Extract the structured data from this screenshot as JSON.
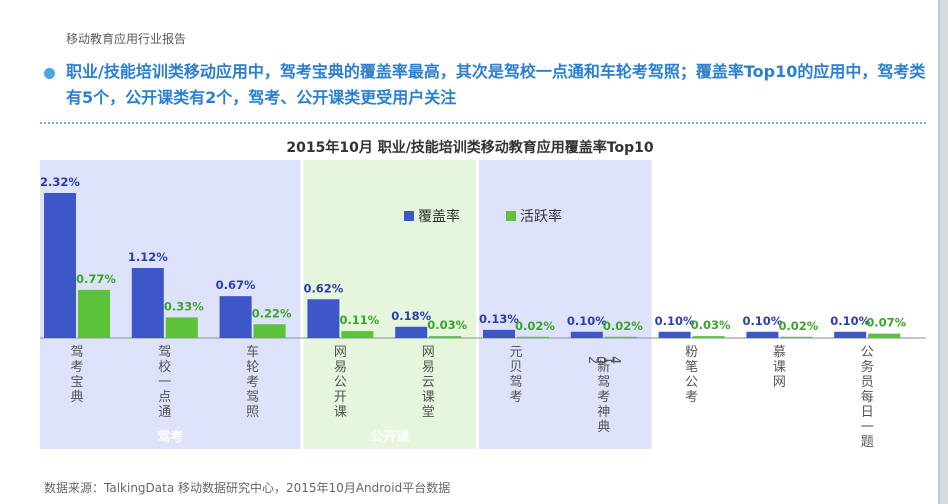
{
  "report": {
    "label": "移动教育应用行业报告",
    "headline": "职业/技能培训类移动应用中，驾考宝典的覆盖率最高，其次是驾校一点通和车轮考驾照；覆盖率Top10的应用中，驾考类有5个，公开课类有2个，驾考、公开课类更受用户关注",
    "source": "数据来源：TalkingData 移动数据研究中心，2015年10月Android平台数据"
  },
  "chart_data": {
    "type": "bar",
    "title": "2015年10月 职业/技能培训类移动教育应用覆盖率Top10",
    "categories": [
      "驾考宝典",
      "驾校一点通",
      "车轮考驾照",
      "网易公开课",
      "网易云课堂",
      "元贝驾考",
      "2014 新驾考神典",
      "粉笔公考",
      "慕课网",
      "公务员每日一题"
    ],
    "series": [
      {
        "name": "覆盖率",
        "color": "#3d57c8",
        "values": [
          2.32,
          1.12,
          0.67,
          0.62,
          0.18,
          0.13,
          0.1,
          0.1,
          0.1,
          0.1
        ],
        "labels": [
          "2.32%",
          "1.12%",
          "0.67%",
          "0.62%",
          "0.18%",
          "0.13%",
          "0.10%",
          "0.10%",
          "0.10%",
          "0.10%"
        ]
      },
      {
        "name": "活跃率",
        "color": "#5cc23c",
        "values": [
          0.77,
          0.33,
          0.22,
          0.11,
          0.03,
          0.02,
          0.02,
          0.03,
          0.02,
          0.07
        ],
        "labels": [
          "0.77%",
          "0.33%",
          "0.22%",
          "0.11%",
          "0.03%",
          "0.02%",
          "0.02%",
          "0.03%",
          "0.02%",
          "0.07%"
        ]
      }
    ],
    "groups": [
      {
        "label": "驾考",
        "from": 0,
        "to": 2,
        "color": "#dfe2fb"
      },
      {
        "label": "公开课",
        "from": 3,
        "to": 4,
        "color": "#e5f6dc"
      },
      {
        "label": "",
        "from": 5,
        "to": 6,
        "color": "#dfe2fb"
      }
    ],
    "legend": "top-center",
    "ylim": [
      0,
      2.4
    ],
    "grid": false
  }
}
